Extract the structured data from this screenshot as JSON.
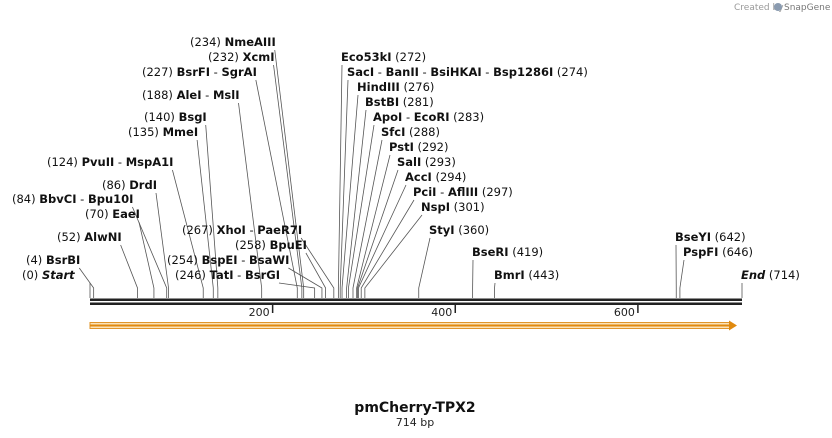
{
  "credit": {
    "prefix": "Created by",
    "brand": "SnapGene"
  },
  "plasmid": {
    "name": "pmCherry-TPX2",
    "length_label": "714 bp",
    "length": 714
  },
  "ruler": {
    "ticks": [
      "200",
      "400",
      "600"
    ],
    "tick_positions": [
      200,
      400,
      600
    ]
  },
  "feature": {
    "name": "orange-arrow-feature",
    "color": "#f0a030"
  },
  "sites": [
    {
      "label": "(0)  ",
      "labels": [
        {
          "t": "Start",
          "pos": 0
        }
      ],
      "style": "em",
      "pos": 0
    },
    {
      "label": "(4)  ",
      "labels": [
        {
          "t": "BsrBI",
          "pos": 4
        }
      ],
      "pos": 4
    },
    {
      "label": "(52)  ",
      "labels": [
        {
          "t": "AlwNI",
          "pos": 52
        }
      ],
      "pos": 52
    },
    {
      "label": "(70)  ",
      "labels": [
        {
          "t": "EaeI",
          "pos": 70
        }
      ],
      "pos": 70
    },
    {
      "label": "(84)  ",
      "labels": [
        {
          "t": "BbvCI",
          "pos": 84
        },
        {
          "t": "Bpu10I",
          "pos": 84
        }
      ],
      "pos": 84
    },
    {
      "label": "(86)  ",
      "labels": [
        {
          "t": "DrdI",
          "pos": 86
        }
      ],
      "pos": 86
    },
    {
      "label": "(124)  ",
      "labels": [
        {
          "t": "PvuII",
          "pos": 124
        },
        {
          "t": "MspA1I",
          "pos": 124
        }
      ],
      "pos": 124
    },
    {
      "label": "(135)  ",
      "labels": [
        {
          "t": "MmeI",
          "pos": 135
        }
      ],
      "pos": 135
    },
    {
      "label": "(140)  ",
      "labels": [
        {
          "t": "BsgI",
          "pos": 140
        }
      ],
      "pos": 140
    },
    {
      "label": "(188)  ",
      "labels": [
        {
          "t": "AleI",
          "pos": 188
        },
        {
          "t": "MslI",
          "pos": 188
        }
      ],
      "pos": 188
    },
    {
      "label": "(227)  ",
      "labels": [
        {
          "t": "BsrFI",
          "pos": 227
        },
        {
          "t": "SgrAI",
          "pos": 227
        }
      ],
      "pos": 227
    },
    {
      "label": "(232)  ",
      "labels": [
        {
          "t": "XcmI",
          "pos": 232
        }
      ],
      "pos": 232
    },
    {
      "label": "(234)  ",
      "labels": [
        {
          "t": "NmeAIII",
          "pos": 234
        }
      ],
      "pos": 234
    },
    {
      "label": "(246)  ",
      "labels": [
        {
          "t": "TatI",
          "pos": 246
        },
        {
          "t": "BsrGI",
          "pos": 246
        }
      ],
      "pos": 246
    },
    {
      "label": "(254)  ",
      "labels": [
        {
          "t": "BspEI",
          "pos": 254
        },
        {
          "t": "BsaWI",
          "pos": 254
        }
      ],
      "pos": 254
    },
    {
      "label": "(258)  ",
      "labels": [
        {
          "t": "BpuEI",
          "pos": 258
        }
      ],
      "pos": 258
    },
    {
      "label": "(267)  ",
      "labels": [
        {
          "t": "XhoI",
          "pos": 267
        },
        {
          "t": "PaeR7I",
          "pos": 267
        }
      ],
      "pos": 267
    },
    {
      "label": "(272)",
      "labels": [
        {
          "t": "Eco53kI",
          "pos": 272
        }
      ],
      "pos": 272,
      "right": true
    },
    {
      "label": "(274)",
      "labels": [
        {
          "t": "SacI",
          "pos": 274
        },
        {
          "t": "BanII",
          "pos": 274
        },
        {
          "t": "BsiHKAI",
          "pos": 274
        },
        {
          "t": "Bsp1286I",
          "pos": 274
        }
      ],
      "pos": 274,
      "right": true
    },
    {
      "label": "(276)",
      "labels": [
        {
          "t": "HindIII",
          "pos": 276
        }
      ],
      "pos": 276,
      "right": true
    },
    {
      "label": "(281)",
      "labels": [
        {
          "t": "BstBI",
          "pos": 281
        }
      ],
      "pos": 281,
      "right": true
    },
    {
      "label": "(283)",
      "labels": [
        {
          "t": "ApoI",
          "pos": 283
        },
        {
          "t": "EcoRI",
          "pos": 283
        }
      ],
      "pos": 283,
      "right": true
    },
    {
      "label": "(288)",
      "labels": [
        {
          "t": "SfcI",
          "pos": 288
        }
      ],
      "pos": 288,
      "right": true
    },
    {
      "label": "(292)",
      "labels": [
        {
          "t": "PstI",
          "pos": 292
        }
      ],
      "pos": 292,
      "right": true
    },
    {
      "label": "(293)",
      "labels": [
        {
          "t": "SalI",
          "pos": 293
        }
      ],
      "pos": 293,
      "right": true
    },
    {
      "label": "(294)",
      "labels": [
        {
          "t": "AccI",
          "pos": 294
        }
      ],
      "pos": 294,
      "right": true
    },
    {
      "label": "(297)",
      "labels": [
        {
          "t": "PciI",
          "pos": 297
        },
        {
          "t": "AflIII",
          "pos": 297
        }
      ],
      "pos": 297,
      "right": true
    },
    {
      "label": "(301)",
      "labels": [
        {
          "t": "NspI",
          "pos": 301
        }
      ],
      "pos": 301,
      "right": true
    },
    {
      "label": "(360)",
      "labels": [
        {
          "t": "StyI",
          "pos": 360
        }
      ],
      "pos": 360,
      "right": true
    },
    {
      "label": "(419)",
      "labels": [
        {
          "t": "BseRI",
          "pos": 419
        }
      ],
      "pos": 419,
      "right": true
    },
    {
      "label": "(443)",
      "labels": [
        {
          "t": "BmrI",
          "pos": 443
        }
      ],
      "pos": 443,
      "right": true
    },
    {
      "label": "(642)",
      "labels": [
        {
          "t": "BseYI",
          "pos": 642
        }
      ],
      "pos": 642,
      "right": true
    },
    {
      "label": "(646)",
      "labels": [
        {
          "t": "PspFI",
          "pos": 646
        }
      ],
      "pos": 646,
      "right": true
    },
    {
      "label": "(714)",
      "labels": [
        {
          "t": "End",
          "pos": 714
        }
      ],
      "style": "em",
      "pos": 714,
      "right": true
    }
  ]
}
